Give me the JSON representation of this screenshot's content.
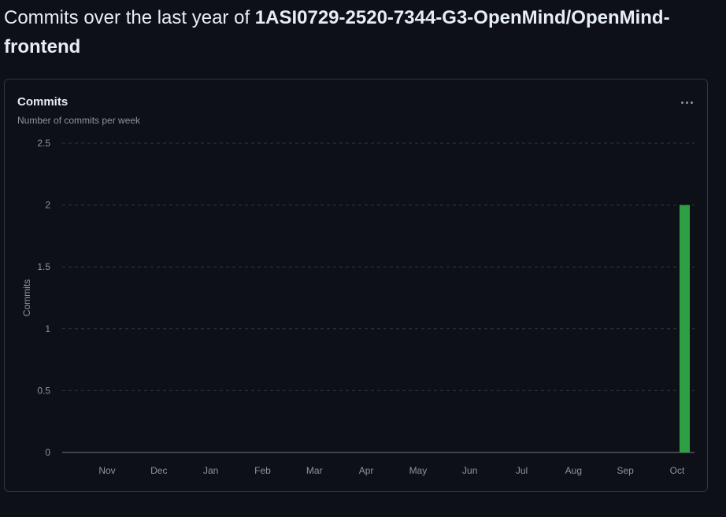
{
  "heading": {
    "prefix": "Commits over the last year of",
    "repo": "1ASI0729-2520-7344-G3-OpenMind/OpenMind-frontend"
  },
  "card": {
    "title": "Commits",
    "subtitle": "Number of commits per week",
    "more_icon": "kebab-horizontal-icon"
  },
  "chart_data": {
    "type": "bar",
    "ylabel": "Commits",
    "xlabel": "",
    "ylim": [
      0,
      2.5
    ],
    "yticks": [
      "0",
      "0.5",
      "1",
      "1.5",
      "2",
      "2.5"
    ],
    "x_month_labels": [
      "Nov",
      "Dec",
      "Jan",
      "Feb",
      "Mar",
      "Apr",
      "May",
      "Jun",
      "Jul",
      "Aug",
      "Sep",
      "Oct"
    ],
    "weeks": 53,
    "values": [
      0,
      0,
      0,
      0,
      0,
      0,
      0,
      0,
      0,
      0,
      0,
      0,
      0,
      0,
      0,
      0,
      0,
      0,
      0,
      0,
      0,
      0,
      0,
      0,
      0,
      0,
      0,
      0,
      0,
      0,
      0,
      0,
      0,
      0,
      0,
      0,
      0,
      0,
      0,
      0,
      0,
      0,
      0,
      0,
      0,
      0,
      0,
      0,
      0,
      0,
      0,
      0,
      2
    ],
    "bar_color": "#2ea043",
    "grid": true
  }
}
